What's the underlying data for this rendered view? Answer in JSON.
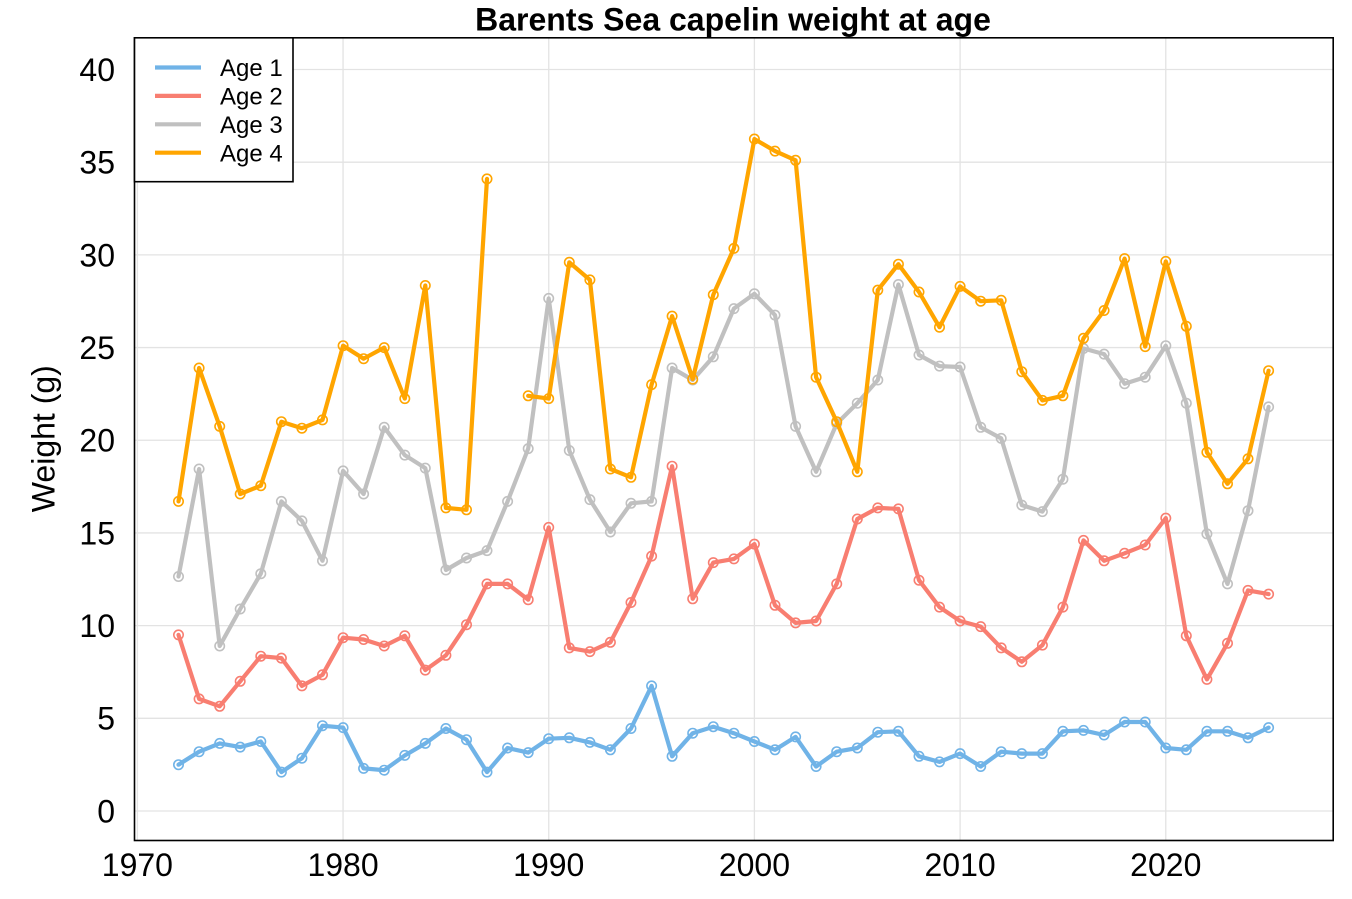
{
  "chart_data": {
    "type": "line",
    "title": "Barents Sea capelin weight at age",
    "xlabel": "",
    "ylabel": "Weight (g)",
    "x": [
      1972,
      1973,
      1974,
      1975,
      1976,
      1977,
      1978,
      1979,
      1980,
      1981,
      1982,
      1983,
      1984,
      1985,
      1986,
      1987,
      1988,
      1989,
      1990,
      1991,
      1992,
      1993,
      1994,
      1995,
      1996,
      1997,
      1998,
      1999,
      2000,
      2001,
      2002,
      2003,
      2004,
      2005,
      2006,
      2007,
      2008,
      2009,
      2010,
      2011,
      2012,
      2013,
      2014,
      2015,
      2016,
      2017,
      2018,
      2019,
      2020,
      2021,
      2022,
      2023,
      2024,
      2025
    ],
    "series": [
      {
        "name": "Age 1",
        "color": "#70b3e7",
        "values": [
          2.5,
          3.2,
          3.65,
          3.45,
          3.75,
          2.1,
          2.85,
          4.6,
          4.5,
          2.3,
          2.2,
          3.0,
          3.65,
          4.45,
          3.85,
          2.1,
          3.4,
          3.15,
          3.9,
          3.95,
          3.7,
          3.3,
          4.45,
          6.75,
          2.95,
          4.2,
          4.55,
          4.2,
          3.75,
          3.3,
          4.0,
          2.4,
          3.2,
          3.4,
          4.25,
          4.3,
          2.95,
          2.65,
          3.1,
          2.4,
          3.2,
          3.1,
          3.1,
          4.3,
          4.35,
          4.1,
          4.8,
          4.8,
          3.4,
          3.3,
          4.3,
          4.3,
          3.95,
          4.5
        ]
      },
      {
        "name": "Age 2",
        "color": "#f87e71",
        "values": [
          9.5,
          6.05,
          5.65,
          7.0,
          8.35,
          8.25,
          6.75,
          7.35,
          9.35,
          9.25,
          8.9,
          9.45,
          7.6,
          8.4,
          10.05,
          12.25,
          12.25,
          11.4,
          15.3,
          8.8,
          8.6,
          9.1,
          11.25,
          13.75,
          18.6,
          11.45,
          13.4,
          13.6,
          14.4,
          11.1,
          10.15,
          10.25,
          12.25,
          15.75,
          16.35,
          16.3,
          12.45,
          11.0,
          10.25,
          9.95,
          8.8,
          8.05,
          8.95,
          11.0,
          14.6,
          13.5,
          13.9,
          14.35,
          15.8,
          9.45,
          7.1,
          9.05,
          11.9,
          11.7
        ]
      },
      {
        "name": "Age 3",
        "color": "#c0c0c0",
        "values": [
          12.65,
          18.45,
          8.9,
          10.9,
          12.8,
          16.7,
          15.65,
          13.5,
          18.35,
          17.1,
          20.7,
          19.2,
          18.5,
          13.0,
          13.65,
          14.05,
          16.7,
          19.55,
          27.65,
          19.45,
          16.8,
          15.05,
          16.6,
          16.7,
          23.9,
          23.25,
          24.5,
          27.1,
          27.9,
          26.75,
          20.75,
          18.3,
          20.9,
          22.0,
          23.25,
          28.4,
          24.6,
          24.0,
          23.95,
          20.7,
          20.1,
          16.5,
          16.15,
          17.9,
          24.95,
          24.65,
          23.05,
          23.4,
          25.1,
          22.0,
          14.95,
          12.25,
          16.2,
          21.8
        ]
      },
      {
        "name": "Age 4",
        "color": "#ffa500",
        "values": [
          16.7,
          23.9,
          20.75,
          17.1,
          17.55,
          21.0,
          20.65,
          21.1,
          25.1,
          24.4,
          25.0,
          22.25,
          28.35,
          16.35,
          16.25,
          34.1,
          null,
          22.4,
          22.25,
          29.6,
          28.65,
          18.45,
          18.0,
          23.0,
          26.7,
          23.3,
          27.85,
          30.35,
          36.25,
          35.6,
          35.1,
          23.4,
          21.0,
          18.3,
          28.1,
          29.5,
          28.0,
          26.1,
          28.3,
          27.5,
          27.55,
          23.7,
          22.15,
          22.4,
          25.5,
          27.0,
          29.8,
          25.05,
          29.65,
          26.15,
          19.35,
          17.65,
          19.0,
          23.75
        ]
      }
    ],
    "xticks": [
      1970,
      1980,
      1990,
      2000,
      2010,
      2020
    ],
    "yticks": [
      0,
      5,
      10,
      15,
      20,
      25,
      30,
      35,
      40
    ],
    "xlim": [
      1969.86,
      2028.14
    ],
    "ylim": [
      -1.59,
      41.71
    ],
    "grid": true,
    "grid_color": "#e3e3e3",
    "border_color": "#000000",
    "background_color": "#ffffff",
    "legend_position": "top-left",
    "legend_labels": [
      "Age 1",
      "Age 2",
      "Age 3",
      "Age 4"
    ]
  }
}
